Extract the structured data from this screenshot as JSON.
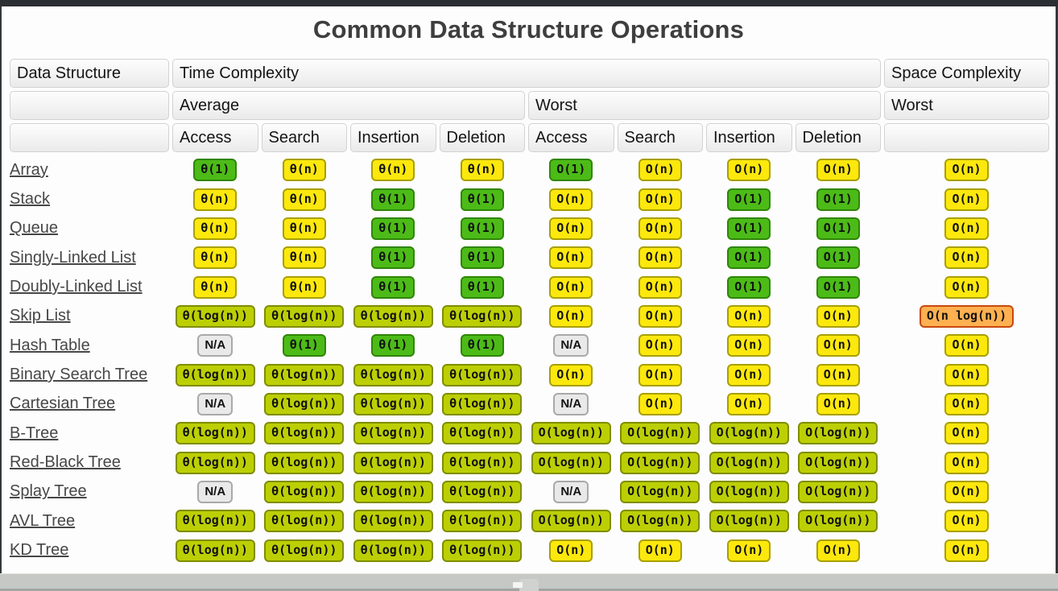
{
  "page": {
    "title": "Common Data Structure Operations"
  },
  "palette": {
    "green": "#4cbb17",
    "yellow": "#fce80c",
    "yellow_green": "#bccf04",
    "orange": "#ffb050",
    "na_gray": "#e9e9e9",
    "top_bar": "#2b2f33",
    "bottom_bar": "#c5c8c4"
  },
  "table": {
    "headers": {
      "data_structure": "Data Structure",
      "time_complexity": "Time Complexity",
      "space_complexity": "Space Complexity",
      "average": "Average",
      "worst": "Worst",
      "space_worst": "Worst",
      "ops_average": [
        "Access",
        "Search",
        "Insertion",
        "Deletion"
      ],
      "ops_worst": [
        "Access",
        "Search",
        "Insertion",
        "Deletion"
      ]
    },
    "rows": [
      {
        "name": "Array",
        "cells": [
          [
            "θ(1)",
            "g"
          ],
          [
            "θ(n)",
            "y"
          ],
          [
            "θ(n)",
            "y"
          ],
          [
            "θ(n)",
            "y"
          ],
          [
            "O(1)",
            "g"
          ],
          [
            "O(n)",
            "y"
          ],
          [
            "O(n)",
            "y"
          ],
          [
            "O(n)",
            "y"
          ],
          [
            "O(n)",
            "y"
          ]
        ]
      },
      {
        "name": "Stack",
        "cells": [
          [
            "θ(n)",
            "y"
          ],
          [
            "θ(n)",
            "y"
          ],
          [
            "θ(1)",
            "g"
          ],
          [
            "θ(1)",
            "g"
          ],
          [
            "O(n)",
            "y"
          ],
          [
            "O(n)",
            "y"
          ],
          [
            "O(1)",
            "g"
          ],
          [
            "O(1)",
            "g"
          ],
          [
            "O(n)",
            "y"
          ]
        ]
      },
      {
        "name": "Queue",
        "cells": [
          [
            "θ(n)",
            "y"
          ],
          [
            "θ(n)",
            "y"
          ],
          [
            "θ(1)",
            "g"
          ],
          [
            "θ(1)",
            "g"
          ],
          [
            "O(n)",
            "y"
          ],
          [
            "O(n)",
            "y"
          ],
          [
            "O(1)",
            "g"
          ],
          [
            "O(1)",
            "g"
          ],
          [
            "O(n)",
            "y"
          ]
        ]
      },
      {
        "name": "Singly-Linked List",
        "cells": [
          [
            "θ(n)",
            "y"
          ],
          [
            "θ(n)",
            "y"
          ],
          [
            "θ(1)",
            "g"
          ],
          [
            "θ(1)",
            "g"
          ],
          [
            "O(n)",
            "y"
          ],
          [
            "O(n)",
            "y"
          ],
          [
            "O(1)",
            "g"
          ],
          [
            "O(1)",
            "g"
          ],
          [
            "O(n)",
            "y"
          ]
        ]
      },
      {
        "name": "Doubly-Linked List",
        "cells": [
          [
            "θ(n)",
            "y"
          ],
          [
            "θ(n)",
            "y"
          ],
          [
            "θ(1)",
            "g"
          ],
          [
            "θ(1)",
            "g"
          ],
          [
            "O(n)",
            "y"
          ],
          [
            "O(n)",
            "y"
          ],
          [
            "O(1)",
            "g"
          ],
          [
            "O(1)",
            "g"
          ],
          [
            "O(n)",
            "y"
          ]
        ]
      },
      {
        "name": "Skip List",
        "cells": [
          [
            "θ(log(n))",
            "yg"
          ],
          [
            "θ(log(n))",
            "yg"
          ],
          [
            "θ(log(n))",
            "yg"
          ],
          [
            "θ(log(n))",
            "yg"
          ],
          [
            "O(n)",
            "y"
          ],
          [
            "O(n)",
            "y"
          ],
          [
            "O(n)",
            "y"
          ],
          [
            "O(n)",
            "y"
          ],
          [
            "O(n log(n))",
            "or"
          ]
        ]
      },
      {
        "name": "Hash Table",
        "cells": [
          [
            "N/A",
            "na"
          ],
          [
            "θ(1)",
            "g"
          ],
          [
            "θ(1)",
            "g"
          ],
          [
            "θ(1)",
            "g"
          ],
          [
            "N/A",
            "na"
          ],
          [
            "O(n)",
            "y"
          ],
          [
            "O(n)",
            "y"
          ],
          [
            "O(n)",
            "y"
          ],
          [
            "O(n)",
            "y"
          ]
        ]
      },
      {
        "name": "Binary Search Tree",
        "cells": [
          [
            "θ(log(n))",
            "yg"
          ],
          [
            "θ(log(n))",
            "yg"
          ],
          [
            "θ(log(n))",
            "yg"
          ],
          [
            "θ(log(n))",
            "yg"
          ],
          [
            "O(n)",
            "y"
          ],
          [
            "O(n)",
            "y"
          ],
          [
            "O(n)",
            "y"
          ],
          [
            "O(n)",
            "y"
          ],
          [
            "O(n)",
            "y"
          ]
        ]
      },
      {
        "name": "Cartesian Tree",
        "cells": [
          [
            "N/A",
            "na"
          ],
          [
            "θ(log(n))",
            "yg"
          ],
          [
            "θ(log(n))",
            "yg"
          ],
          [
            "θ(log(n))",
            "yg"
          ],
          [
            "N/A",
            "na"
          ],
          [
            "O(n)",
            "y"
          ],
          [
            "O(n)",
            "y"
          ],
          [
            "O(n)",
            "y"
          ],
          [
            "O(n)",
            "y"
          ]
        ]
      },
      {
        "name": "B-Tree",
        "cells": [
          [
            "θ(log(n))",
            "yg"
          ],
          [
            "θ(log(n))",
            "yg"
          ],
          [
            "θ(log(n))",
            "yg"
          ],
          [
            "θ(log(n))",
            "yg"
          ],
          [
            "O(log(n))",
            "yg"
          ],
          [
            "O(log(n))",
            "yg"
          ],
          [
            "O(log(n))",
            "yg"
          ],
          [
            "O(log(n))",
            "yg"
          ],
          [
            "O(n)",
            "y"
          ]
        ]
      },
      {
        "name": "Red-Black Tree",
        "cells": [
          [
            "θ(log(n))",
            "yg"
          ],
          [
            "θ(log(n))",
            "yg"
          ],
          [
            "θ(log(n))",
            "yg"
          ],
          [
            "θ(log(n))",
            "yg"
          ],
          [
            "O(log(n))",
            "yg"
          ],
          [
            "O(log(n))",
            "yg"
          ],
          [
            "O(log(n))",
            "yg"
          ],
          [
            "O(log(n))",
            "yg"
          ],
          [
            "O(n)",
            "y"
          ]
        ]
      },
      {
        "name": "Splay Tree",
        "cells": [
          [
            "N/A",
            "na"
          ],
          [
            "θ(log(n))",
            "yg"
          ],
          [
            "θ(log(n))",
            "yg"
          ],
          [
            "θ(log(n))",
            "yg"
          ],
          [
            "N/A",
            "na"
          ],
          [
            "O(log(n))",
            "yg"
          ],
          [
            "O(log(n))",
            "yg"
          ],
          [
            "O(log(n))",
            "yg"
          ],
          [
            "O(n)",
            "y"
          ]
        ]
      },
      {
        "name": "AVL Tree",
        "cells": [
          [
            "θ(log(n))",
            "yg"
          ],
          [
            "θ(log(n))",
            "yg"
          ],
          [
            "θ(log(n))",
            "yg"
          ],
          [
            "θ(log(n))",
            "yg"
          ],
          [
            "O(log(n))",
            "yg"
          ],
          [
            "O(log(n))",
            "yg"
          ],
          [
            "O(log(n))",
            "yg"
          ],
          [
            "O(log(n))",
            "yg"
          ],
          [
            "O(n)",
            "y"
          ]
        ]
      },
      {
        "name": "KD Tree",
        "cells": [
          [
            "θ(log(n))",
            "yg"
          ],
          [
            "θ(log(n))",
            "yg"
          ],
          [
            "θ(log(n))",
            "yg"
          ],
          [
            "θ(log(n))",
            "yg"
          ],
          [
            "O(n)",
            "y"
          ],
          [
            "O(n)",
            "y"
          ],
          [
            "O(n)",
            "y"
          ],
          [
            "O(n)",
            "y"
          ],
          [
            "O(n)",
            "y"
          ]
        ]
      }
    ]
  }
}
